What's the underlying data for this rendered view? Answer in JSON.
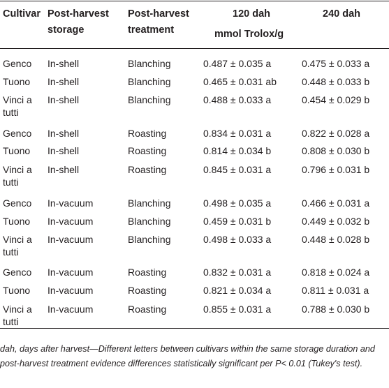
{
  "table": {
    "headers": {
      "cultivar": "Cultivar",
      "storage_line1": "Post-harvest",
      "storage_line2": "storage",
      "treatment_line1": "Post-harvest",
      "treatment_line2": "treatment",
      "col120": "120 dah",
      "col240": "240 dah",
      "unit": "mmol Trolox/g"
    },
    "rows": [
      {
        "cultivar": "Genco",
        "cultivar2": "",
        "storage": "In-shell",
        "treatment": "Blanching",
        "v120": "0.487 ± 0.035 a",
        "v240": "0.475 ± 0.033 a"
      },
      {
        "cultivar": "Tuono",
        "cultivar2": "",
        "storage": "In-shell",
        "treatment": "Blanching",
        "v120": "0.465 ± 0.031 ab",
        "v240": "0.448 ± 0.033 b"
      },
      {
        "cultivar": "Vinci a",
        "cultivar2": "tutti",
        "storage": "In-shell",
        "treatment": "Blanching",
        "v120": "0.488 ± 0.033 a",
        "v240": "0.454 ± 0.029 b"
      },
      {
        "cultivar": "Genco",
        "cultivar2": "",
        "storage": "In-shell",
        "treatment": "Roasting",
        "v120": "0.834 ± 0.031 a",
        "v240": "0.822 ± 0.028 a"
      },
      {
        "cultivar": "Tuono",
        "cultivar2": "",
        "storage": "In-shell",
        "treatment": "Roasting",
        "v120": "0.814 ± 0.034 b",
        "v240": "0.808 ± 0.030 b"
      },
      {
        "cultivar": "Vinci a",
        "cultivar2": "tutti",
        "storage": "In-shell",
        "treatment": "Roasting",
        "v120": "0.845 ± 0.031 a",
        "v240": "0.796 ± 0.031 b"
      },
      {
        "cultivar": "Genco",
        "cultivar2": "",
        "storage": "In-vacuum",
        "treatment": "Blanching",
        "v120": "0.498 ± 0.035 a",
        "v240": "0.466 ± 0.031 a"
      },
      {
        "cultivar": "Tuono",
        "cultivar2": "",
        "storage": "In-vacuum",
        "treatment": "Blanching",
        "v120": "0.459 ± 0.031 b",
        "v240": "0.449 ± 0.032 b"
      },
      {
        "cultivar": "Vinci a",
        "cultivar2": "tutti",
        "storage": "In-vacuum",
        "treatment": "Blanching",
        "v120": "0.498 ± 0.033 a",
        "v240": "0.448 ± 0.028 b"
      },
      {
        "cultivar": "Genco",
        "cultivar2": "",
        "storage": "In-vacuum",
        "treatment": "Roasting",
        "v120": "0.832 ± 0.031 a",
        "v240": "0.818 ± 0.024 a"
      },
      {
        "cultivar": "Tuono",
        "cultivar2": "",
        "storage": "In-vacuum",
        "treatment": "Roasting",
        "v120": "0.821 ± 0.034 a",
        "v240": "0.811 ± 0.031 a"
      },
      {
        "cultivar": "Vinci a",
        "cultivar2": "tutti",
        "storage": "In-vacuum",
        "treatment": "Roasting",
        "v120": "0.855 ± 0.031 a",
        "v240": "0.788 ± 0.030 b"
      }
    ]
  },
  "footnote": "dah, days after harvest—Different letters between cultivars within the same storage duration and post-harvest treatment evidence differences statistically significant per P< 0.01 (Tukey's test)."
}
